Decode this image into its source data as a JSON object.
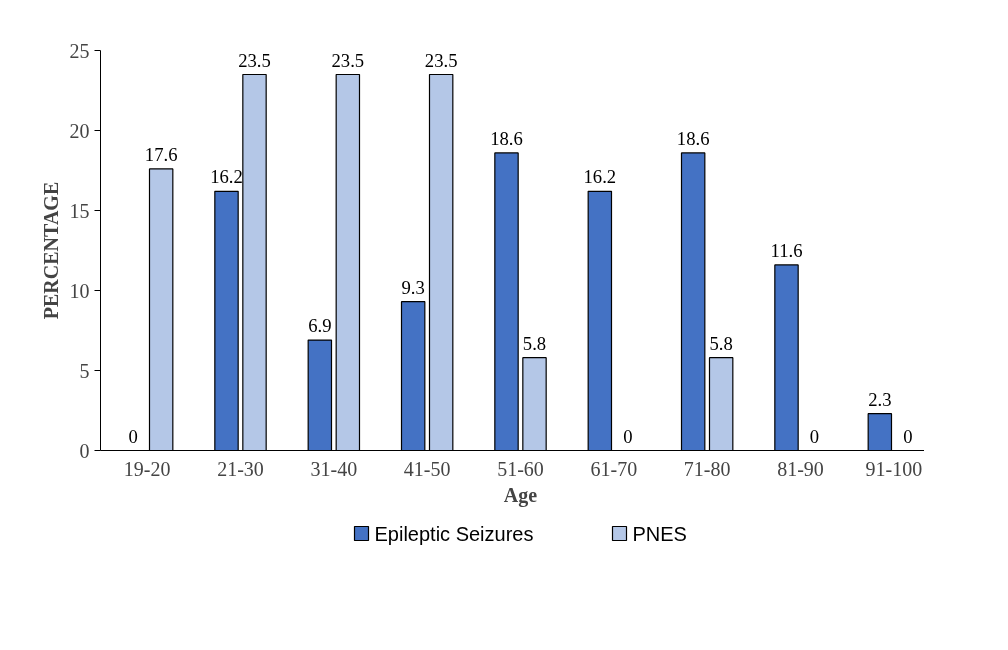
{
  "chart_data": {
    "type": "bar",
    "xlabel": "Age",
    "ylabel": "PERCENTAGE",
    "categories": [
      "19-20",
      "21-30",
      "31-40",
      "41-50",
      "51-60",
      "61-70",
      "71-80",
      "81-90",
      "91-100"
    ],
    "series": [
      {
        "name": "Epileptic Seizures",
        "color": "#4472c4",
        "values": [
          0,
          16.2,
          6.9,
          9.3,
          18.6,
          16.2,
          18.6,
          11.6,
          2.3
        ]
      },
      {
        "name": "PNES",
        "color": "#b4c7e7",
        "values": [
          17.6,
          23.5,
          23.5,
          23.5,
          5.8,
          0,
          5.8,
          0,
          0
        ]
      }
    ],
    "ylim": [
      0,
      25
    ],
    "yticks": [
      0,
      5,
      10,
      15,
      20,
      25
    ],
    "grid": false,
    "legend": "bottom",
    "data_labels": true
  }
}
